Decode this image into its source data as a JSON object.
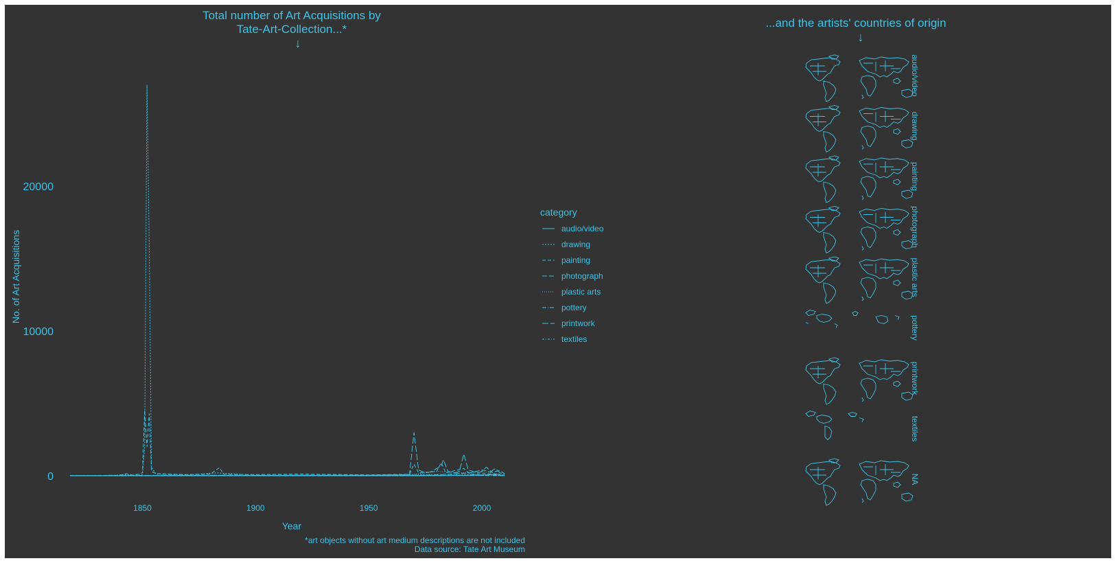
{
  "colors": {
    "background": "#333333",
    "accent": "#3cc3e8",
    "outer": "#ffffff"
  },
  "left_panel": {
    "title_line1": "Total number of Art Acquisitions by",
    "title_line2": "Tate-Art-Collection...*",
    "title_arrow": "↓",
    "footnote_line1": "*art objects without art medium descriptions are not included",
    "footnote_line2": "Data source: Tate Art Museum"
  },
  "right_panel": {
    "title": "...and the artists' countries of origin",
    "title_arrow": "↓",
    "facets": [
      "audio/video",
      "drawing",
      "painting",
      "photograph",
      "plastic arts",
      "pottery",
      "printwork",
      "textiles",
      "NA"
    ]
  },
  "chart_data": {
    "type": "line",
    "title": "Total number of Art Acquisitions by Tate-Art-Collection...*",
    "xlabel": "Year",
    "ylabel": "No. of Art Acquisitions",
    "xlim": [
      1818,
      2013
    ],
    "ylim": [
      -1000,
      28500
    ],
    "xticks": [
      1850,
      1900,
      1950,
      2000
    ],
    "yticks": [
      0,
      10000,
      20000
    ],
    "legend": {
      "title": "category",
      "position": "right",
      "entries": [
        {
          "name": "audio/video",
          "dash": ""
        },
        {
          "name": "drawing",
          "dash": "2,2"
        },
        {
          "name": "painting",
          "dash": "5,3"
        },
        {
          "name": "photograph",
          "dash": "7,3"
        },
        {
          "name": "plastic arts",
          "dash": "1,2"
        },
        {
          "name": "pottery",
          "dash": "6,2,1,2"
        },
        {
          "name": "printwork",
          "dash": "9,3"
        },
        {
          "name": "textiles",
          "dash": "3,2,1,2"
        }
      ]
    },
    "series": [
      {
        "name": "drawing",
        "points": [
          [
            1818,
            0
          ],
          [
            1838,
            30
          ],
          [
            1842,
            80
          ],
          [
            1846,
            40
          ],
          [
            1850,
            60
          ],
          [
            1851,
            2000
          ],
          [
            1852,
            27000
          ],
          [
            1853,
            16000
          ],
          [
            1854,
            600
          ],
          [
            1856,
            120
          ],
          [
            1870,
            60
          ],
          [
            1883,
            200
          ],
          [
            1900,
            40
          ],
          [
            1950,
            30
          ],
          [
            1970,
            80
          ],
          [
            1985,
            90
          ],
          [
            2000,
            60
          ],
          [
            2008,
            50
          ]
        ]
      },
      {
        "name": "painting",
        "points": [
          [
            1818,
            0
          ],
          [
            1840,
            30
          ],
          [
            1843,
            150
          ],
          [
            1846,
            40
          ],
          [
            1850,
            200
          ],
          [
            1851,
            4500
          ],
          [
            1852,
            2000
          ],
          [
            1853,
            4300
          ],
          [
            1854,
            300
          ],
          [
            1856,
            150
          ],
          [
            1870,
            80
          ],
          [
            1880,
            120
          ],
          [
            1884,
            550
          ],
          [
            1886,
            100
          ],
          [
            1900,
            80
          ],
          [
            1920,
            120
          ],
          [
            1950,
            60
          ],
          [
            1968,
            100
          ],
          [
            1970,
            800
          ],
          [
            1972,
            200
          ],
          [
            1980,
            300
          ],
          [
            1982,
            900
          ],
          [
            1984,
            200
          ],
          [
            1992,
            500
          ],
          [
            1995,
            100
          ],
          [
            2000,
            150
          ],
          [
            2008,
            100
          ]
        ]
      },
      {
        "name": "photograph",
        "points": [
          [
            1818,
            0
          ],
          [
            1960,
            0
          ],
          [
            1970,
            20
          ],
          [
            1980,
            60
          ],
          [
            1995,
            200
          ],
          [
            2000,
            400
          ],
          [
            2004,
            250
          ],
          [
            2008,
            350
          ],
          [
            2010,
            150
          ]
        ]
      },
      {
        "name": "plastic arts",
        "points": [
          [
            1818,
            0
          ],
          [
            1850,
            10
          ],
          [
            1884,
            40
          ],
          [
            1900,
            20
          ],
          [
            1950,
            30
          ],
          [
            1970,
            100
          ],
          [
            1980,
            300
          ],
          [
            1990,
            200
          ],
          [
            2000,
            250
          ],
          [
            2008,
            150
          ]
        ]
      },
      {
        "name": "printwork",
        "points": [
          [
            1818,
            0
          ],
          [
            1850,
            20
          ],
          [
            1884,
            30
          ],
          [
            1900,
            20
          ],
          [
            1950,
            40
          ],
          [
            1968,
            80
          ],
          [
            1970,
            3000
          ],
          [
            1972,
            400
          ],
          [
            1975,
            200
          ],
          [
            1978,
            300
          ],
          [
            1980,
            500
          ],
          [
            1982,
            700
          ],
          [
            1983,
            1100
          ],
          [
            1985,
            300
          ],
          [
            1988,
            200
          ],
          [
            1990,
            300
          ],
          [
            1992,
            1500
          ],
          [
            1994,
            400
          ],
          [
            1998,
            200
          ],
          [
            2000,
            300
          ],
          [
            2002,
            600
          ],
          [
            2004,
            300
          ],
          [
            2006,
            500
          ],
          [
            2008,
            200
          ],
          [
            2010,
            100
          ]
        ]
      },
      {
        "name": "audio/video",
        "points": [
          [
            1818,
            0
          ],
          [
            1970,
            0
          ],
          [
            1990,
            20
          ],
          [
            2000,
            50
          ],
          [
            2005,
            80
          ],
          [
            2010,
            40
          ]
        ]
      },
      {
        "name": "pottery",
        "points": [
          [
            1818,
            0
          ],
          [
            1900,
            5
          ],
          [
            1950,
            10
          ],
          [
            2000,
            15
          ],
          [
            2010,
            5
          ]
        ]
      },
      {
        "name": "textiles",
        "points": [
          [
            1818,
            0
          ],
          [
            1900,
            5
          ],
          [
            1950,
            8
          ],
          [
            2000,
            20
          ],
          [
            2010,
            10
          ]
        ]
      }
    ]
  }
}
